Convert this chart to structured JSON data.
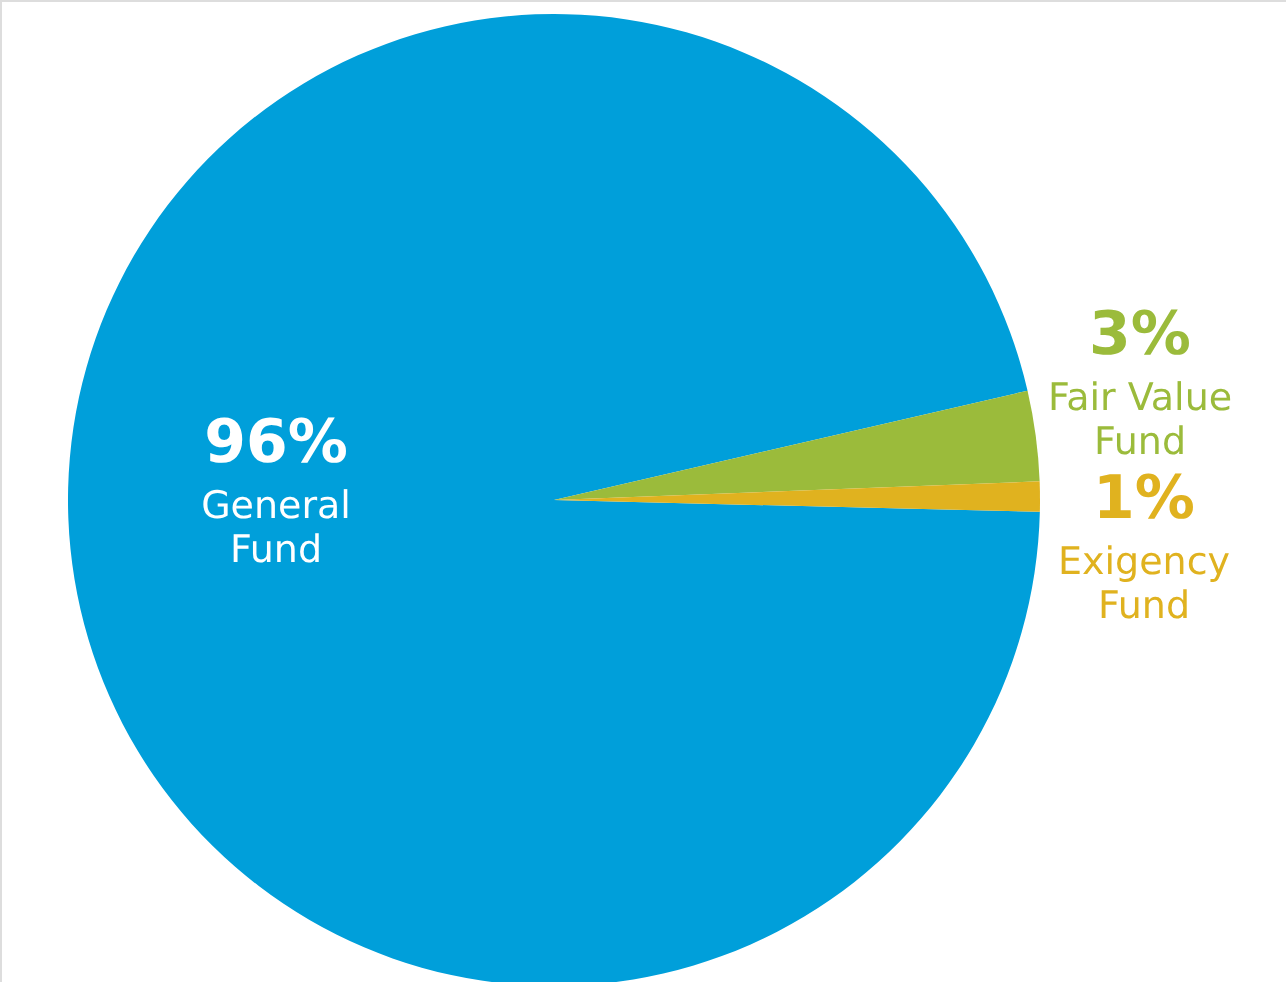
{
  "chart_data": {
    "type": "pie",
    "categories": [
      "General Fund",
      "Fair Value Fund",
      "Exigency Fund"
    ],
    "values": [
      96,
      3,
      1
    ],
    "colors": [
      "#009fda",
      "#9bbb3b",
      "#e0b21f"
    ],
    "value_labels": [
      "96%",
      "3%",
      "1%"
    ]
  }
}
